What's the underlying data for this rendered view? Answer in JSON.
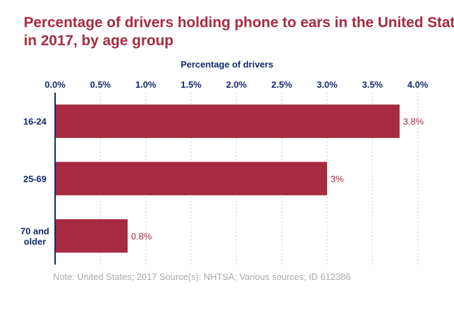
{
  "chart_data": {
    "type": "bar",
    "orientation": "horizontal",
    "title_lines": [
      "Percentage of drivers holding phone to ears in the United States",
      "in 2017, by age group"
    ],
    "xlabel": "Percentage of drivers",
    "ylabel": "",
    "categories": [
      [
        "16-24"
      ],
      [
        "25-69"
      ],
      [
        "70 and",
        "older"
      ]
    ],
    "values": [
      3.8,
      3,
      0.8
    ],
    "data_labels": [
      "3.8%",
      "3%",
      "0.8%"
    ],
    "xlim": [
      0,
      4
    ],
    "ticks": [
      "0.0%",
      "0.5%",
      "1.0%",
      "1.5%",
      "2.0%",
      "2.5%",
      "3.0%",
      "3.5%",
      "4.0%"
    ],
    "tick_values": [
      0,
      0.5,
      1,
      1.5,
      2,
      2.5,
      3,
      3.5,
      4
    ],
    "grid": true,
    "axis_position": "top",
    "bar_color": "#a62b40",
    "axis_color": "#13286b",
    "note": "Note: United States; 2017  Source(s): NHTSA; Various sources; ID 612386"
  }
}
